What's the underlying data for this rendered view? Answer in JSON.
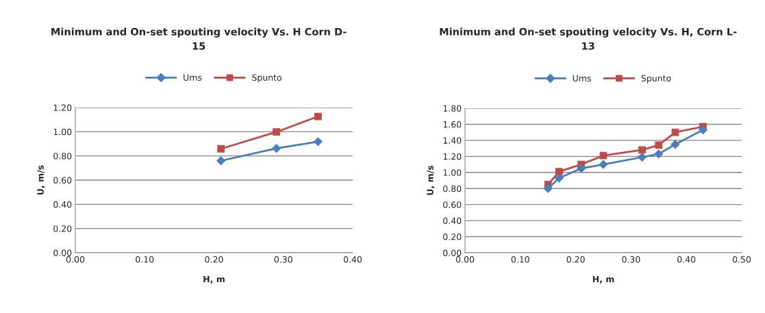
{
  "chart_data": [
    {
      "type": "line",
      "title": "Minimum and On-set spouting velocity Vs. H Corn D-\n15",
      "xlabel": "H, m",
      "ylabel": "U, m/s",
      "x": [
        0.21,
        0.29,
        0.35
      ],
      "series": [
        {
          "name": "Ums",
          "color": "#4a7ebb",
          "marker": "diamond",
          "values": [
            0.76,
            0.862,
            0.918
          ]
        },
        {
          "name": "Spunto",
          "color": "#be4b48",
          "marker": "square",
          "values": [
            0.859,
            0.998,
            1.126
          ]
        }
      ],
      "xlim": [
        0.0,
        0.4
      ],
      "xticks": [
        {
          "value": 0.0,
          "label": "0.00"
        },
        {
          "value": 0.1,
          "label": "0.10"
        },
        {
          "value": 0.2,
          "label": "0.20"
        },
        {
          "value": 0.3,
          "label": "0.30"
        },
        {
          "value": 0.4,
          "label": "0.40"
        }
      ],
      "ylim": [
        0.0,
        1.2
      ],
      "yticks": [
        {
          "value": 0.0,
          "label": "0.00"
        },
        {
          "value": 0.2,
          "label": "0.20"
        },
        {
          "value": 0.4,
          "label": "0.40"
        },
        {
          "value": 0.6,
          "label": "0.60"
        },
        {
          "value": 0.8,
          "label": "0.80"
        },
        {
          "value": 1.0,
          "label": "1.00"
        },
        {
          "value": 1.2,
          "label": "1.20"
        }
      ],
      "grid": "y",
      "legend": "top",
      "line_style": "solid"
    },
    {
      "type": "line",
      "title": "Minimum and On-set spouting velocity Vs. H, Corn L-\n13",
      "xlabel": "H, m",
      "ylabel": "U, m/s",
      "x": [
        0.15,
        0.17,
        0.21,
        0.25,
        0.32,
        0.35,
        0.38,
        0.43
      ],
      "series": [
        {
          "name": "Ums",
          "color": "#4a7ebb",
          "marker": "diamond",
          "values": [
            0.8,
            0.93,
            1.05,
            1.1,
            1.19,
            1.23,
            1.35,
            1.53
          ]
        },
        {
          "name": "Spunto",
          "color": "#be4b48",
          "marker": "square",
          "values": [
            0.85,
            1.01,
            1.1,
            1.21,
            1.28,
            1.34,
            1.5,
            1.57
          ]
        }
      ],
      "xlim": [
        0.0,
        0.5
      ],
      "xticks": [
        {
          "value": 0.0,
          "label": "0.00"
        },
        {
          "value": 0.1,
          "label": "0.10"
        },
        {
          "value": 0.2,
          "label": "0.20"
        },
        {
          "value": 0.3,
          "label": "0.30"
        },
        {
          "value": 0.4,
          "label": "0.40"
        },
        {
          "value": 0.5,
          "label": "0.50"
        }
      ],
      "ylim": [
        0.0,
        1.8
      ],
      "yticks": [
        {
          "value": 0.0,
          "label": "0.00"
        },
        {
          "value": 0.2,
          "label": "0.20"
        },
        {
          "value": 0.4,
          "label": "0.40"
        },
        {
          "value": 0.6,
          "label": "0.60"
        },
        {
          "value": 0.8,
          "label": "0.80"
        },
        {
          "value": 1.0,
          "label": "1.00"
        },
        {
          "value": 1.2,
          "label": "1.20"
        },
        {
          "value": 1.4,
          "label": "1.40"
        },
        {
          "value": 1.6,
          "label": "1.60"
        },
        {
          "value": 1.8,
          "label": "1.80"
        }
      ],
      "grid": "y",
      "legend": "top",
      "line_style": "solid"
    }
  ]
}
